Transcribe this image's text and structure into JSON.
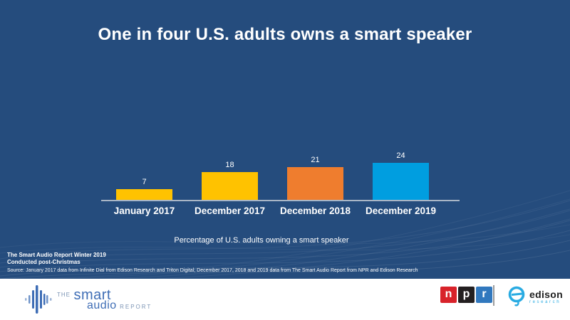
{
  "slide": {
    "title": "One in four U.S. adults owns a smart speaker",
    "caption": "Percentage of U.S. adults owning a smart speaker",
    "footnote_line1": "The Smart Audio Report Winter 2019",
    "footnote_line2": "Conducted post-Christmas",
    "source": "Source: January 2017 data from Infinite Dial from Edison Research and Triton Digital; December 2017, 2018 and 2019 data from The Smart Audio Report from NPR and Edison Research"
  },
  "chart_data": {
    "type": "bar",
    "categories": [
      "January 2017",
      "December 2017",
      "December 2018",
      "December 2019"
    ],
    "values": [
      7,
      18,
      21,
      24
    ],
    "bar_colors": [
      "#FFC200",
      "#FFC200",
      "#EF7D2E",
      "#009EE0"
    ],
    "title": "One in four U.S. adults owns a smart speaker",
    "xlabel": "Percentage of U.S. adults owning a smart speaker",
    "ylabel": "",
    "data_labels": [
      7,
      18,
      21,
      24
    ],
    "grid": false,
    "legend": false,
    "baseline_axis": true
  },
  "footer": {
    "smart_audio_logo": {
      "the": "THE",
      "smart": "smart",
      "audio": "audio",
      "report": "REPORT"
    },
    "npr_logo": {
      "letters": [
        "n",
        "p",
        "r"
      ],
      "colors": [
        "#D8222A",
        "#231F20",
        "#3178BE"
      ]
    },
    "edison_logo": {
      "name": "edison",
      "sub": "research",
      "accent": "#29ABE2"
    }
  },
  "colors": {
    "background": "#254C7D",
    "title_text": "#FFFFFF",
    "axis_line": "#A9B6C6",
    "footer_bg": "#FFFFFF"
  }
}
